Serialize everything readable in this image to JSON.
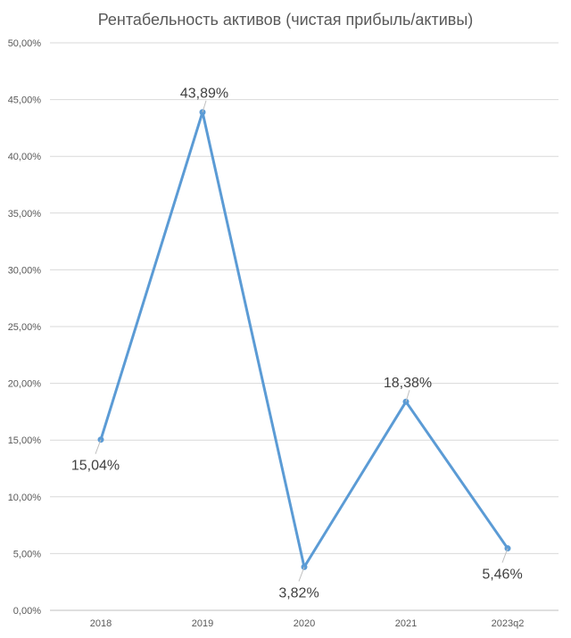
{
  "chart_data": {
    "type": "line",
    "title": "Рентабельность активов (чистая прибыль/активы)",
    "categories": [
      "2018",
      "2019",
      "2020",
      "2021",
      "2023q2"
    ],
    "series": [
      {
        "values": [
          15.04,
          43.89,
          3.82,
          18.38,
          5.46
        ]
      }
    ],
    "data_labels": [
      "15,04%",
      "43,89%",
      "3,82%",
      "18,38%",
      "5,46%"
    ],
    "y_ticks": [
      "0,00%",
      "5,00%",
      "10,00%",
      "15,00%",
      "20,00%",
      "25,00%",
      "30,00%",
      "35,00%",
      "40,00%",
      "45,00%",
      "50,00%"
    ],
    "ylim": [
      0,
      50
    ],
    "grid": true,
    "legend": "none",
    "colors": {
      "line": "#5B9BD5",
      "grid": "#d9d9d9",
      "text": "#595959"
    }
  }
}
